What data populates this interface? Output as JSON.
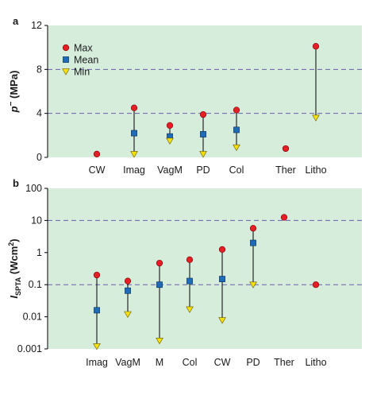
{
  "chart_data": [
    {
      "panel": "a",
      "type": "scatter",
      "ylabel": "p¯ (MPa)",
      "ylabel_main": "p",
      "ylabel_sup": "−",
      "ylabel_unit": " (MPa)",
      "ylim": [
        0,
        12
      ],
      "y_ticks": [
        "0",
        "4",
        "8",
        "12"
      ],
      "y_scale": "linear",
      "reference_lines": [
        4,
        8
      ],
      "categories": [
        "CW",
        "Imag",
        "VagM",
        "PD",
        "Col",
        "Ther",
        "Litho"
      ],
      "series": [
        {
          "name": "Max",
          "marker": "circle",
          "values": [
            0.3,
            4.5,
            2.9,
            3.9,
            4.3,
            0.8,
            10.1
          ]
        },
        {
          "name": "Mean",
          "marker": "square",
          "values": [
            null,
            2.2,
            1.9,
            2.1,
            2.5,
            null,
            null
          ]
        },
        {
          "name": "Min",
          "marker": "triangle",
          "values": [
            null,
            0.3,
            1.5,
            0.3,
            0.9,
            null,
            3.6
          ]
        }
      ],
      "legend": {
        "position": "top-left"
      }
    },
    {
      "panel": "b",
      "type": "scatter",
      "ylabel_main": "I",
      "ylabel_sub": "SPTA",
      "ylabel_unit": " (Wcm",
      "ylabel_sup": "2",
      "ylabel_close": ")",
      "ylim": [
        0.001,
        100
      ],
      "y_ticks": [
        "0.001",
        "0.01",
        "0.1",
        "1",
        "10",
        "100"
      ],
      "y_scale": "log",
      "reference_lines": [
        0.1,
        10
      ],
      "categories": [
        "Imag",
        "VagM",
        "M",
        "Col",
        "CW",
        "PD",
        "Ther",
        "Litho"
      ],
      "series": [
        {
          "name": "Max",
          "marker": "circle",
          "values": [
            0.2,
            0.13,
            0.47,
            0.6,
            1.25,
            5.7,
            12.5,
            0.1
          ]
        },
        {
          "name": "Mean",
          "marker": "square",
          "values": [
            0.016,
            0.065,
            0.1,
            0.13,
            0.15,
            2.0,
            null,
            null
          ]
        },
        {
          "name": "Min",
          "marker": "triangle",
          "values": [
            0.0012,
            0.012,
            0.0018,
            0.017,
            0.0078,
            0.1,
            null,
            null
          ]
        }
      ]
    }
  ],
  "colors": {
    "panel_background": "#d6eddc",
    "max_marker": "#e41f26",
    "mean_marker": "#1f6bb5",
    "min_marker": "#f5e10e",
    "reference_line": "#6b5fa8",
    "stem": "#000000"
  }
}
